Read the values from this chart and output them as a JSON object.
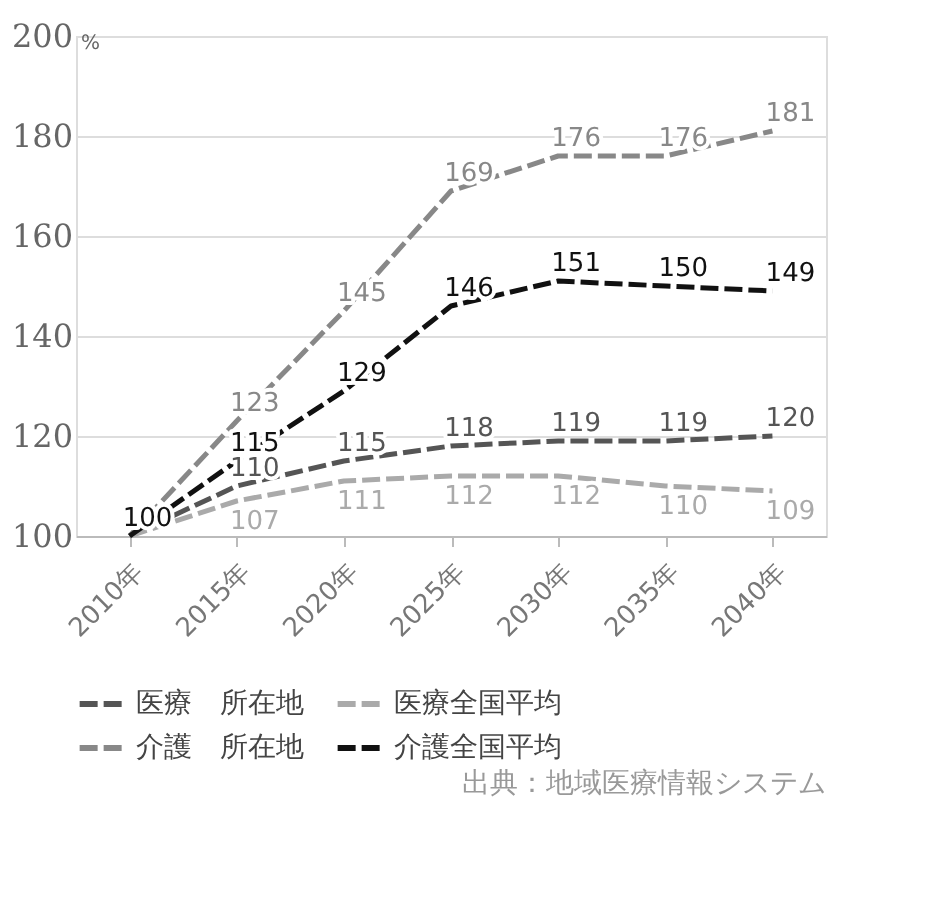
{
  "chart_data": {
    "type": "line",
    "ylabel": "%",
    "categories": [
      "2010年",
      "2015年",
      "2020年",
      "2025年",
      "2030年",
      "2035年",
      "2040年"
    ],
    "series": [
      {
        "name": "医療　所在地",
        "color": "#555555",
        "values": [
          100,
          110,
          115,
          118,
          119,
          119,
          120
        ],
        "value_labels": [
          null,
          "110",
          "115",
          "118",
          "119",
          "119",
          "120"
        ]
      },
      {
        "name": "医療全国平均",
        "color": "#aaaaaa",
        "values": [
          100,
          107,
          111,
          112,
          112,
          110,
          109
        ],
        "value_labels": [
          null,
          "107",
          "111",
          "112",
          "112",
          "110",
          "109"
        ]
      },
      {
        "name": "介護　所在地",
        "color": "#888888",
        "values": [
          100,
          123,
          145,
          169,
          176,
          176,
          181
        ],
        "value_labels": [
          null,
          "123",
          "145",
          "169",
          "176",
          "176",
          "181"
        ]
      },
      {
        "name": "介護全国平均",
        "color": "#111111",
        "values": [
          100,
          115,
          129,
          146,
          151,
          150,
          149
        ],
        "value_labels": [
          "100",
          "115",
          "129",
          "146",
          "151",
          "150",
          "149"
        ]
      }
    ],
    "ylim": [
      100,
      200
    ],
    "yticks": [
      100,
      120,
      140,
      160,
      180,
      200
    ],
    "grid": "y",
    "legend": "bottom",
    "line_style": "dashed",
    "marker": "none",
    "annotations": [
      "出典：地域医療情報システム"
    ]
  }
}
